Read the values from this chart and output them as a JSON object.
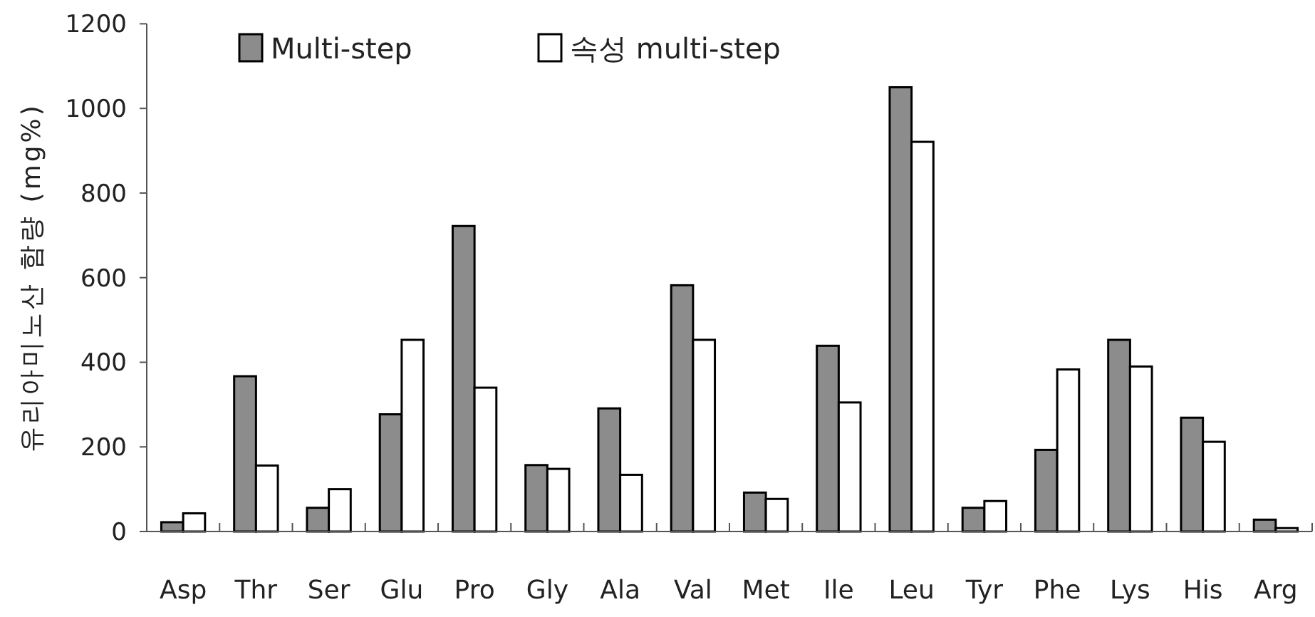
{
  "chart_data": {
    "type": "bar",
    "ylabel": "유리아미노산 함량 (mg%)",
    "categories": [
      "Asp",
      "Thr",
      "Ser",
      "Glu",
      "Pro",
      "Gly",
      "Ala",
      "Val",
      "Met",
      "Ile",
      "Leu",
      "Tyr",
      "Phe",
      "Lys",
      "His",
      "Arg"
    ],
    "series": [
      {
        "name": "Multi-step",
        "color": "#8c8c8c",
        "values": [
          22,
          367,
          56,
          277,
          722,
          157,
          291,
          582,
          92,
          439,
          1050,
          56,
          193,
          453,
          269,
          28
        ]
      },
      {
        "name": "속성 multi-step",
        "color": "#ffffff",
        "values": [
          43,
          156,
          100,
          453,
          340,
          148,
          134,
          453,
          77,
          305,
          921,
          72,
          383,
          390,
          212,
          8
        ]
      }
    ],
    "ylim": [
      0,
      1200
    ],
    "yticks": [
      0,
      200,
      400,
      600,
      800,
      1000,
      1200
    ],
    "grid": false,
    "legend": "top"
  }
}
